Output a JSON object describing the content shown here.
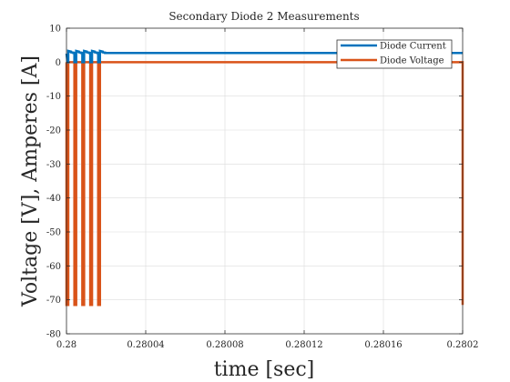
{
  "chart_data": {
    "type": "line",
    "title": "Secondary Diode 2 Measurements",
    "xlabel": "time [sec]",
    "ylabel": "Voltage [V], Amperes [A]",
    "xlim": [
      0.28,
      0.2802
    ],
    "ylim": [
      -80,
      10
    ],
    "xticks": [
      0.28,
      0.28004,
      0.28008,
      0.28012,
      0.28016,
      0.2802
    ],
    "xtick_labels": [
      "0.28",
      "0.28004",
      "0.28008",
      "0.28012",
      "0.28016",
      "0.2802"
    ],
    "yticks": [
      10,
      0,
      -10,
      -20,
      -30,
      -40,
      -50,
      -60,
      -70,
      -80
    ],
    "ytick_labels": [
      "10",
      "0",
      "-10",
      "-20",
      "-30",
      "-40",
      "-50",
      "-60",
      "-70",
      "-80"
    ],
    "grid": true,
    "legend": "top-right",
    "series": [
      {
        "name": "Diode Current",
        "color": "#0072BD",
        "x": [
          0.28,
          0.2800005,
          0.2800009,
          0.2800009,
          0.2800023,
          0.2800023,
          0.2800035,
          0.2800035,
          0.280004,
          0.280004,
          0.2800049,
          0.2800049,
          0.2800063,
          0.2800063,
          0.2800075,
          0.2800075,
          0.280008,
          0.280008,
          0.2800089,
          0.2800089,
          0.2800103,
          0.2800103,
          0.2800115,
          0.2800115,
          0.280012,
          0.280012,
          0.2800129,
          0.2800129,
          0.2800143,
          0.2800143,
          0.2800155,
          0.2800155,
          0.280016,
          0.280016,
          0.2800169,
          0.2800169,
          0.2800183,
          0.2800183,
          0.2800195,
          0.2800195,
          0.2802
        ],
        "y": [
          2.5,
          0,
          0,
          3.3,
          3.1,
          2.9,
          2.8,
          2.7,
          2.7,
          0,
          0,
          3.3,
          3.1,
          2.9,
          2.8,
          2.7,
          2.7,
          0,
          0,
          3.3,
          3.1,
          2.9,
          2.8,
          2.7,
          2.7,
          0,
          0,
          3.3,
          3.1,
          2.9,
          2.8,
          2.7,
          2.7,
          0,
          0,
          3.3,
          3.1,
          2.9,
          2.8,
          2.7,
          2.7
        ]
      },
      {
        "name": "Diode Voltage",
        "color": "#D95319",
        "x": [
          0.28,
          0.28,
          0.2800009,
          0.2800009,
          0.280004,
          0.280004,
          0.2800049,
          0.2800049,
          0.280008,
          0.280008,
          0.2800089,
          0.2800089,
          0.280012,
          0.280012,
          0.2800129,
          0.2800129,
          0.280016,
          0.280016,
          0.2800169,
          0.2800169,
          0.2802,
          0.2802
        ],
        "y": [
          0,
          -71.5,
          -71.5,
          0,
          0,
          -71.5,
          -71.5,
          0,
          0,
          -71.5,
          -71.5,
          0,
          0,
          -71.5,
          -71.5,
          0,
          0,
          -71.5,
          -71.5,
          0,
          0,
          -71.5
        ]
      }
    ]
  }
}
